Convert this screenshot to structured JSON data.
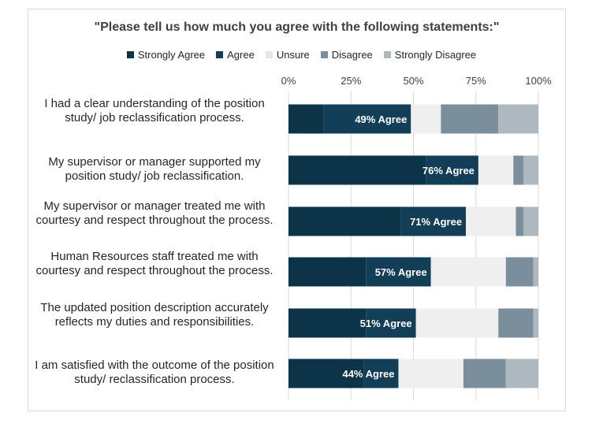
{
  "chart_data": {
    "type": "bar",
    "orientation": "horizontal",
    "stacked": true,
    "normalized": true,
    "title": "\"Please tell us how much you agree with the following statements:\"",
    "xlim": [
      0,
      100
    ],
    "ticks": [
      "0%",
      "25%",
      "50%",
      "75%",
      "100%"
    ],
    "legend_position": "top",
    "categories": [
      "I had a clear understanding of the position study/ job reclassification process.",
      "My supervisor or manager supported my position study/ job reclassification.",
      "My supervisor or manager treated me with courtesy and respect throughout the process.",
      "Human Resources staff treated me with courtesy and respect throughout the process.",
      "The updated position description accurately reflects my duties and responsibilities.",
      "I am satisfied with the outcome of the position study/ reclassification process."
    ],
    "series": [
      {
        "name": "Strongly Agree",
        "color": "#0d3349",
        "values": [
          14,
          55,
          45,
          31,
          31,
          30
        ]
      },
      {
        "name": "Agree",
        "color": "#123e57",
        "values": [
          35,
          21,
          26,
          26,
          20,
          14
        ]
      },
      {
        "name": "Unsure",
        "color": "#efefef",
        "values": [
          12,
          14,
          20,
          30,
          33,
          26
        ]
      },
      {
        "name": "Disagree",
        "color": "#7b8e9b",
        "values": [
          23,
          4,
          3,
          11,
          14,
          17
        ]
      },
      {
        "name": "Strongly Disagree",
        "color": "#aeb8bf",
        "values": [
          16,
          6,
          6,
          2,
          2,
          13
        ]
      }
    ],
    "bar_labels": [
      "49% Agree",
      "76% Agree",
      "71% Agree",
      "57% Agree",
      "51% Agree",
      "44% Agree"
    ]
  }
}
